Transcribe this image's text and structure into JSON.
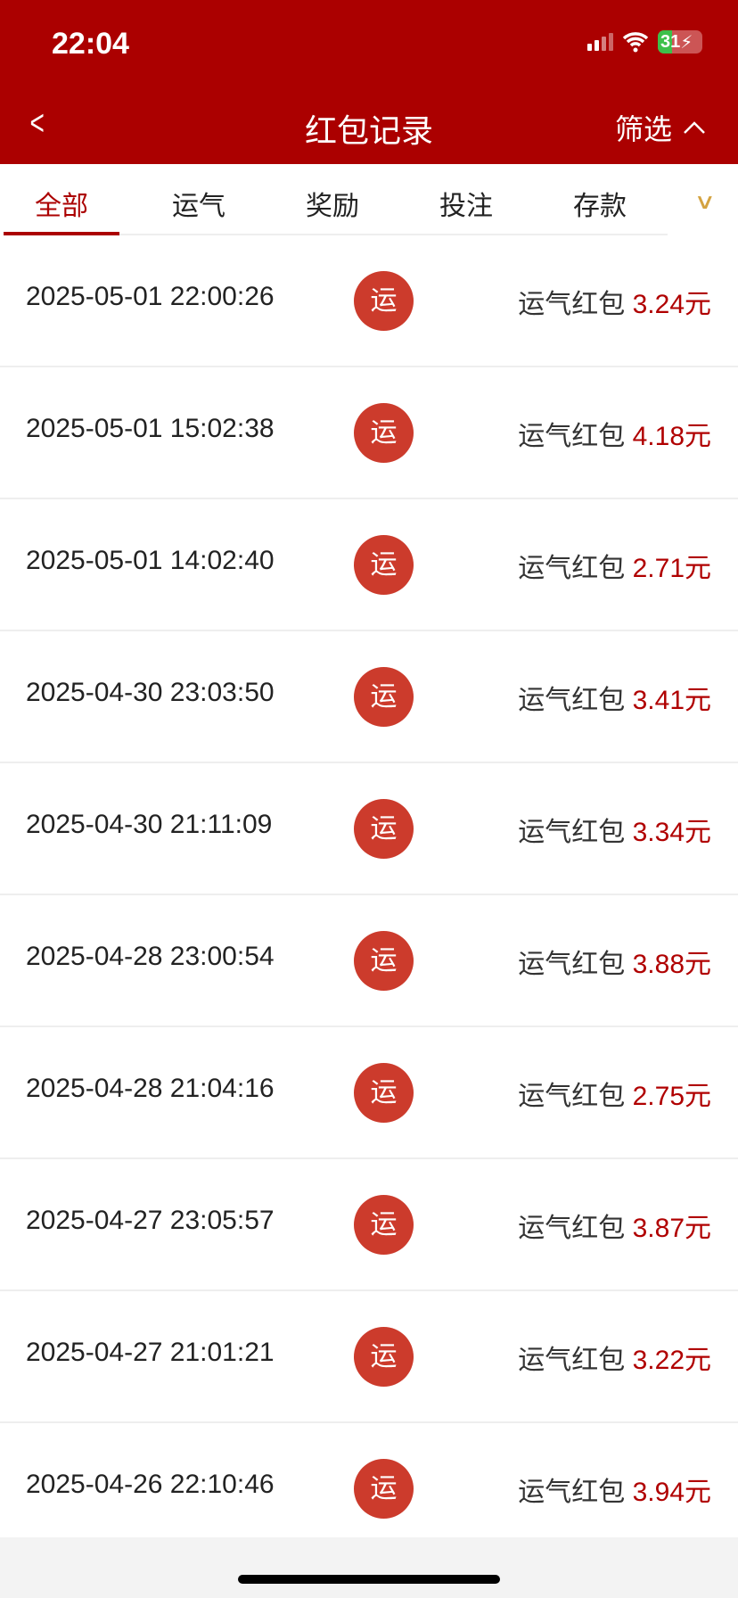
{
  "status_bar": {
    "time": "22:04",
    "battery": "31"
  },
  "header": {
    "back_icon": "chevron-left-icon",
    "title": "红包记录",
    "filter_label": "筛选",
    "filter_icon": "chevron-up-icon"
  },
  "tabs": [
    {
      "label": "全部",
      "active": true
    },
    {
      "label": "运气"
    },
    {
      "label": "奖励"
    },
    {
      "label": "投注"
    },
    {
      "label": "存款"
    }
  ],
  "tabs_more_icon": "chevron-down-icon",
  "colors": {
    "brand": "#ab0000",
    "badge": "#cc3b2c",
    "amount": "#b00000"
  },
  "records": [
    {
      "datetime": "2025-05-01 22:00:26",
      "badge": "运",
      "type": "运气红包",
      "amount": "3.24元"
    },
    {
      "datetime": "2025-05-01 15:02:38",
      "badge": "运",
      "type": "运气红包",
      "amount": "4.18元"
    },
    {
      "datetime": "2025-05-01 14:02:40",
      "badge": "运",
      "type": "运气红包",
      "amount": "2.71元"
    },
    {
      "datetime": "2025-04-30 23:03:50",
      "badge": "运",
      "type": "运气红包",
      "amount": "3.41元"
    },
    {
      "datetime": "2025-04-30 21:11:09",
      "badge": "运",
      "type": "运气红包",
      "amount": "3.34元"
    },
    {
      "datetime": "2025-04-28 23:00:54",
      "badge": "运",
      "type": "运气红包",
      "amount": "3.88元"
    },
    {
      "datetime": "2025-04-28 21:04:16",
      "badge": "运",
      "type": "运气红包",
      "amount": "2.75元"
    },
    {
      "datetime": "2025-04-27 23:05:57",
      "badge": "运",
      "type": "运气红包",
      "amount": "3.87元"
    },
    {
      "datetime": "2025-04-27 21:01:21",
      "badge": "运",
      "type": "运气红包",
      "amount": "3.22元"
    },
    {
      "datetime": "2025-04-26 22:10:46",
      "badge": "运",
      "type": "运气红包",
      "amount": "3.94元"
    }
  ]
}
